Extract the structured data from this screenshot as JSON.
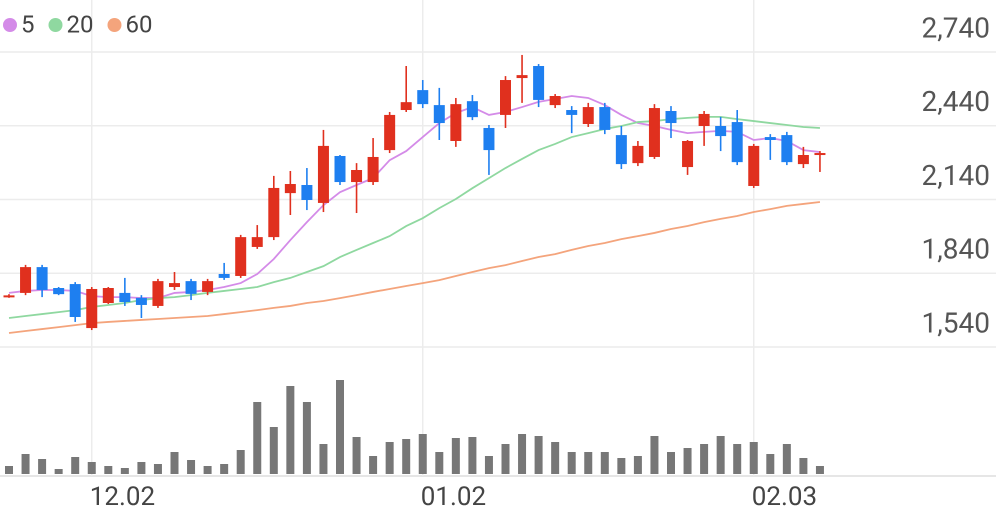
{
  "chart_data": {
    "type": "candlestick",
    "categories": [
      null,
      null,
      null,
      null,
      null,
      "12.02",
      null,
      null,
      null,
      null,
      null,
      null,
      null,
      null,
      null,
      null,
      null,
      null,
      null,
      null,
      null,
      null,
      null,
      null,
      null,
      "01.02",
      null,
      null,
      null,
      null,
      null,
      null,
      null,
      null,
      null,
      null,
      null,
      null,
      null,
      null,
      null,
      null,
      null,
      null,
      null,
      "02.03",
      null,
      null,
      null,
      null
    ],
    "open": [
      1745,
      1760,
      1865,
      1780,
      1796,
      1617,
      1719,
      1760,
      1740,
      1707,
      1784,
      1808,
      1764,
      1837,
      1829,
      1947,
      1987,
      2166,
      2199,
      2126,
      2317,
      2211,
      2211,
      2341,
      2504,
      2585,
      2524,
      2378,
      2540,
      2431,
      2484,
      2634,
      2683,
      2524,
      2504,
      2447,
      2516,
      2402,
      2288,
      2313,
      2500,
      2272,
      2439,
      2439,
      2455,
      2195,
      2394,
      2402,
      2284,
      2325
    ],
    "high": [
      1755,
      1874,
      1874,
      1784,
      1804,
      1784,
      1784,
      1821,
      1751,
      1817,
      1845,
      1817,
      1817,
      1882,
      1996,
      2036,
      2236,
      2256,
      2268,
      2423,
      2321,
      2288,
      2390,
      2496,
      2683,
      2626,
      2594,
      2553,
      2565,
      2443,
      2642,
      2728,
      2691,
      2569,
      2520,
      2533,
      2533,
      2439,
      2378,
      2528,
      2520,
      2382,
      2500,
      2476,
      2504,
      2366,
      2406,
      2415,
      2354,
      2337
    ],
    "low": [
      1740,
      1751,
      1743,
      1751,
      1642,
      1609,
      1715,
      1707,
      1658,
      1699,
      1772,
      1731,
      1751,
      1813,
      1821,
      1939,
      1975,
      2077,
      2097,
      2089,
      2199,
      2085,
      2199,
      2329,
      2496,
      2512,
      2382,
      2354,
      2463,
      2240,
      2431,
      2533,
      2516,
      2512,
      2410,
      2435,
      2406,
      2264,
      2276,
      2305,
      2390,
      2240,
      2358,
      2337,
      2280,
      2187,
      2301,
      2280,
      2268,
      2252
    ],
    "close": [
      1750,
      1865,
      1772,
      1755,
      1662,
      1776,
      1780,
      1723,
      1711,
      1808,
      1800,
      1756,
      1808,
      1821,
      1987,
      1987,
      2187,
      2203,
      2138,
      2358,
      2211,
      2260,
      2313,
      2484,
      2536,
      2528,
      2451,
      2528,
      2475,
      2341,
      2626,
      2646,
      2545,
      2561,
      2484,
      2516,
      2423,
      2284,
      2358,
      2512,
      2451,
      2378,
      2488,
      2398,
      2292,
      2358,
      2382,
      2292,
      2321,
      2329
    ],
    "up_color": "#e0301e",
    "down_color": "#1e7ff0",
    "ma": [
      {
        "name": "5",
        "color": "#d48be8",
        "values": [
          1760,
          1768,
          1772,
          1772,
          1768,
          1747,
          1743,
          1743,
          1739,
          1739,
          1760,
          1764,
          1772,
          1784,
          1800,
          1837,
          1898,
          1975,
          2048,
          2117,
          2170,
          2199,
          2227,
          2300,
          2337,
          2394,
          2451,
          2492,
          2516,
          2484,
          2496,
          2516,
          2537,
          2549,
          2561,
          2553,
          2524,
          2484,
          2451,
          2439,
          2423,
          2410,
          2415,
          2419,
          2415,
          2382,
          2390,
          2378,
          2341,
          2333
        ]
      },
      {
        "name": "20",
        "color": "#8fd8a0",
        "values": [
          1658,
          1666,
          1674,
          1682,
          1690,
          1703,
          1711,
          1719,
          1731,
          1739,
          1743,
          1751,
          1760,
          1768,
          1776,
          1784,
          1804,
          1821,
          1845,
          1869,
          1906,
          1935,
          1963,
          1991,
          2032,
          2064,
          2105,
          2142,
          2186,
          2227,
          2268,
          2305,
          2341,
          2366,
          2394,
          2410,
          2427,
          2439,
          2455,
          2459,
          2467,
          2472,
          2476,
          2476,
          2467,
          2459,
          2451,
          2443,
          2435,
          2431
        ]
      },
      {
        "name": "60",
        "color": "#f4a47c",
        "values": [
          1597,
          1605,
          1613,
          1621,
          1629,
          1637,
          1642,
          1646,
          1650,
          1654,
          1658,
          1662,
          1666,
          1674,
          1682,
          1690,
          1699,
          1707,
          1719,
          1727,
          1739,
          1751,
          1764,
          1776,
          1788,
          1800,
          1812,
          1829,
          1845,
          1861,
          1873,
          1890,
          1906,
          1918,
          1935,
          1951,
          1963,
          1979,
          1991,
          2004,
          2020,
          2032,
          2048,
          2061,
          2073,
          2089,
          2101,
          2114,
          2122,
          2130
        ]
      }
    ],
    "volume": {
      "color": "#777777",
      "values": [
        8,
        20,
        15,
        5,
        17,
        12,
        8,
        6,
        12,
        10,
        22,
        14,
        8,
        10,
        24,
        72,
        47,
        88,
        72,
        30,
        94,
        37,
        18,
        32,
        35,
        40,
        22,
        36,
        37,
        18,
        30,
        40,
        38,
        32,
        22,
        22,
        22,
        16,
        18,
        38,
        22,
        26,
        30,
        38,
        30,
        32,
        20,
        30,
        16,
        8
      ]
    },
    "volume_ylim": [
      0,
      100
    ],
    "ylim": [
      1540,
      2740
    ],
    "yticks": [
      {
        "value": 2740,
        "label": "2,740"
      },
      {
        "value": 2440,
        "label": "2,440"
      },
      {
        "value": 2140,
        "label": "2,140"
      },
      {
        "value": 1840,
        "label": "1,840"
      },
      {
        "value": 1540,
        "label": "1,540"
      }
    ],
    "grid": true
  }
}
